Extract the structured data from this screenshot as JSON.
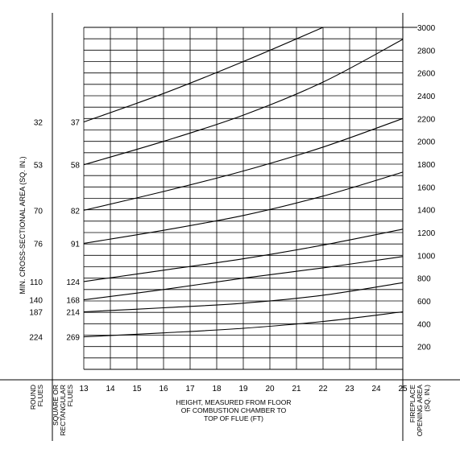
{
  "chart_data": {
    "type": "line",
    "xlabel": [
      "HEIGHT, MEASURED FROM FLOOR",
      "OF COMBUSTION CHAMBER TO",
      "TOP OF FLUE (FT)"
    ],
    "ylabel": "MIN. CROSS-SECTIONAL AREA (SQ. IN.)",
    "xlim": [
      13,
      25
    ],
    "ylim": [
      0,
      3000
    ],
    "grid": true,
    "x_ticks": [
      13,
      14,
      15,
      16,
      17,
      18,
      19,
      20,
      21,
      22,
      23,
      24,
      25
    ],
    "y_ticks_right": [
      200,
      400,
      600,
      800,
      1000,
      1200,
      1400,
      1600,
      1800,
      2000,
      2200,
      2400,
      2600,
      2800,
      3000
    ],
    "round_flue_sizes": [
      "224",
      "187",
      "140",
      "110",
      "76",
      "70",
      "53",
      "32"
    ],
    "square_flue_sizes": [
      "269",
      "214",
      "168",
      "124",
      "91",
      "82",
      "58",
      "37"
    ],
    "column_labels": {
      "round": [
        "ROUND",
        "FLUES"
      ],
      "square": [
        "SQUARE OR",
        "RECTANGULAR",
        "FLUES"
      ],
      "fireplace": [
        "FIREPLACE",
        "OPENING AREA",
        "(SQ. IN.)"
      ]
    },
    "series": [
      {
        "x": [
          13,
          16,
          19,
          22,
          25
        ],
        "values": [
          285,
          320,
          360,
          420,
          505
        ]
      },
      {
        "x": [
          13,
          16,
          19,
          22,
          25
        ],
        "values": [
          505,
          540,
          580,
          650,
          760
        ]
      },
      {
        "x": [
          13,
          16,
          19,
          22,
          25
        ],
        "values": [
          610,
          700,
          800,
          890,
          990
        ]
      },
      {
        "x": [
          13,
          16,
          19,
          22,
          25
        ],
        "values": [
          770,
          870,
          970,
          1090,
          1230
        ]
      },
      {
        "x": [
          13,
          16,
          19,
          22,
          25
        ],
        "values": [
          1105,
          1220,
          1350,
          1520,
          1730
        ]
      },
      {
        "x": [
          13,
          16,
          19,
          22,
          25
        ],
        "values": [
          1395,
          1560,
          1740,
          1950,
          2200
        ]
      },
      {
        "x": [
          13,
          16,
          19,
          22,
          25
        ],
        "values": [
          1795,
          2000,
          2230,
          2520,
          2895
        ]
      },
      {
        "x": [
          13,
          16,
          19,
          22
        ],
        "values": [
          2170,
          2420,
          2700,
          3000
        ]
      }
    ]
  }
}
